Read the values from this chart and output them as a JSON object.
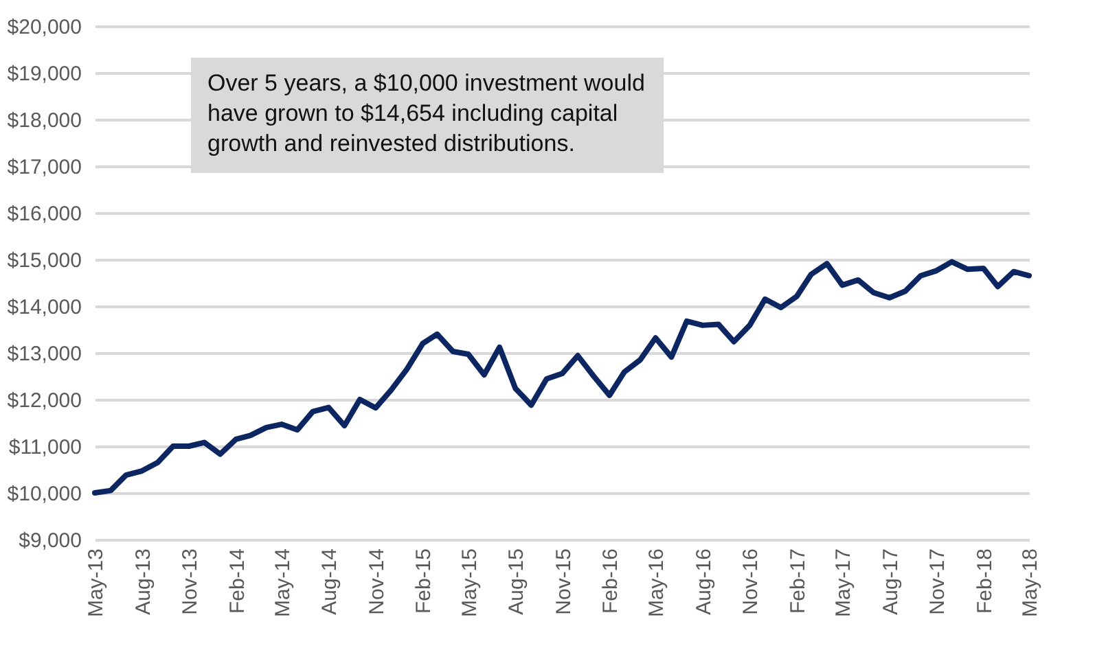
{
  "chart_data": {
    "type": "line",
    "x": [
      "2013-05",
      "2013-06",
      "2013-07",
      "2013-08",
      "2013-09",
      "2013-10",
      "2013-11",
      "2013-12",
      "2014-01",
      "2014-02",
      "2014-03",
      "2014-04",
      "2014-05",
      "2014-06",
      "2014-07",
      "2014-08",
      "2014-09",
      "2014-10",
      "2014-11",
      "2014-12",
      "2015-01",
      "2015-02",
      "2015-03",
      "2015-04",
      "2015-05",
      "2015-06",
      "2015-07",
      "2015-08",
      "2015-09",
      "2015-10",
      "2015-11",
      "2015-12",
      "2016-01",
      "2016-02",
      "2016-03",
      "2016-04",
      "2016-05",
      "2016-06",
      "2016-07",
      "2016-08",
      "2016-09",
      "2016-10",
      "2016-11",
      "2016-12",
      "2017-01",
      "2017-02",
      "2017-03",
      "2017-04",
      "2017-05",
      "2017-06",
      "2017-07",
      "2017-08",
      "2017-09",
      "2017-10",
      "2017-11",
      "2017-12",
      "2018-01",
      "2018-02",
      "2018-03",
      "2018-04",
      "2018-05"
    ],
    "series": [
      {
        "color": "#0b2660",
        "values": [
          10000,
          10050,
          10380,
          10470,
          10650,
          11000,
          11000,
          11080,
          10830,
          11150,
          11230,
          11400,
          11470,
          11350,
          11740,
          11830,
          11440,
          12000,
          11820,
          12200,
          12650,
          13200,
          13400,
          13030,
          12970,
          12530,
          13120,
          12240,
          11880,
          12440,
          12560,
          12940,
          12500,
          12090,
          12590,
          12850,
          13320,
          12910,
          13680,
          13590,
          13610,
          13240,
          13590,
          14150,
          13970,
          14210,
          14680,
          14910,
          14450,
          14560,
          14290,
          14180,
          14320,
          14650,
          14760,
          14950,
          14790,
          14810,
          14420,
          14740,
          14654
        ]
      }
    ],
    "xlim": [
      "2013-05",
      "2018-05"
    ],
    "xticks": [
      {
        "value": "2013-05",
        "label": "May-13"
      },
      {
        "value": "2013-08",
        "label": "Aug-13"
      },
      {
        "value": "2013-11",
        "label": "Nov-13"
      },
      {
        "value": "2014-02",
        "label": "Feb-14"
      },
      {
        "value": "2014-05",
        "label": "May-14"
      },
      {
        "value": "2014-08",
        "label": "Aug-14"
      },
      {
        "value": "2014-11",
        "label": "Nov-14"
      },
      {
        "value": "2015-02",
        "label": "Feb-15"
      },
      {
        "value": "2015-05",
        "label": "May-15"
      },
      {
        "value": "2015-08",
        "label": "Aug-15"
      },
      {
        "value": "2015-11",
        "label": "Nov-15"
      },
      {
        "value": "2016-02",
        "label": "Feb-16"
      },
      {
        "value": "2016-05",
        "label": "May-16"
      },
      {
        "value": "2016-08",
        "label": "Aug-16"
      },
      {
        "value": "2016-11",
        "label": "Nov-16"
      },
      {
        "value": "2017-02",
        "label": "Feb-17"
      },
      {
        "value": "2017-05",
        "label": "May-17"
      },
      {
        "value": "2017-08",
        "label": "Aug-17"
      },
      {
        "value": "2017-11",
        "label": "Nov-17"
      },
      {
        "value": "2018-02",
        "label": "Feb-18"
      },
      {
        "value": "2018-05",
        "label": "May-18"
      }
    ],
    "ylim": [
      9000,
      20000
    ],
    "yticks": [
      {
        "value": 9000,
        "label": "$9,000"
      },
      {
        "value": 10000,
        "label": "$10,000"
      },
      {
        "value": 11000,
        "label": "$11,000"
      },
      {
        "value": 12000,
        "label": "$12,000"
      },
      {
        "value": 13000,
        "label": "$13,000"
      },
      {
        "value": 14000,
        "label": "$14,000"
      },
      {
        "value": 15000,
        "label": "$15,000"
      },
      {
        "value": 16000,
        "label": "$16,000"
      },
      {
        "value": 17000,
        "label": "$17,000"
      },
      {
        "value": 18000,
        "label": "$18,000"
      },
      {
        "value": 19000,
        "label": "$19,000"
      },
      {
        "value": 20000,
        "label": "$20,000"
      }
    ],
    "grid": "y",
    "line_style": "solid",
    "annotations": [
      "Over 5 years, a $10,000 investment would have grown to $14,654 including capital growth and reinvested distributions."
    ]
  }
}
